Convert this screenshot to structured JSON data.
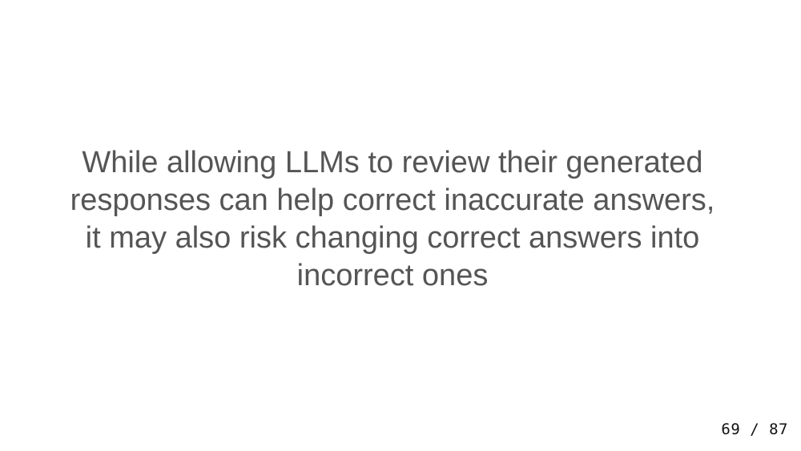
{
  "slide": {
    "lines": [
      "While allowing LLMs to review their generated",
      "responses can help correct inaccurate answers,",
      "it may also risk changing correct answers into",
      "incorrect ones"
    ],
    "page_counter": "69 / 87"
  },
  "colors": {
    "background": "#ffffff",
    "body_text": "#555555",
    "counter_text": "#111111"
  }
}
